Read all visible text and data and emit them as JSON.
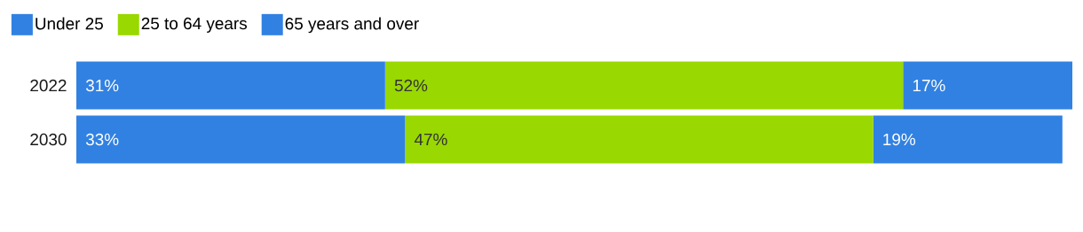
{
  "chart_data": {
    "type": "bar",
    "orientation": "horizontal",
    "stacked": true,
    "legend": "top left",
    "categories": [
      "2022",
      "2030"
    ],
    "series": [
      {
        "name": "Under 25",
        "color": "#3181e2",
        "values": [
          31,
          33
        ],
        "value_labels": [
          "31%",
          "33%"
        ]
      },
      {
        "name": "25 to 64 years",
        "color": "#99d800",
        "values": [
          52,
          47
        ],
        "value_labels": [
          "52%",
          "47%"
        ]
      },
      {
        "name": "65 years and over",
        "color": "#3181e2",
        "values": [
          17,
          19
        ],
        "value_labels": [
          "17%",
          "19%"
        ]
      }
    ]
  }
}
